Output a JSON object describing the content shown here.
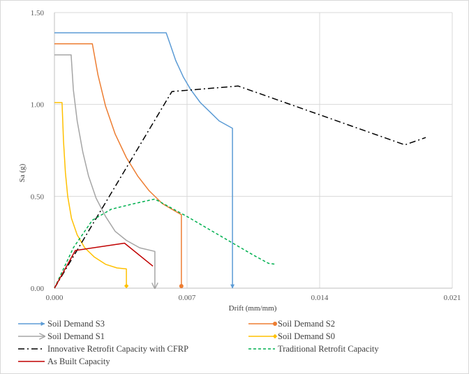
{
  "chart_data": {
    "type": "line",
    "xlabel": "Drift (mm/mm)",
    "ylabel": "Sa (g)",
    "xlim": [
      0,
      0.021
    ],
    "ylim": [
      0,
      1.5
    ],
    "x_ticks": [
      0,
      0.007,
      0.014,
      0.021
    ],
    "x_tick_labels": [
      "0.000",
      "0.007",
      "0.014",
      "0.021"
    ],
    "y_ticks": [
      0,
      0.5,
      1.0,
      1.5
    ],
    "y_tick_labels": [
      "0.00",
      "0.50",
      "1.00",
      "1.50"
    ],
    "grid": "vertical and horizontal at major ticks",
    "legend_position": "bottom",
    "series": [
      {
        "name": "Soil Demand S3",
        "color": "#5b9bd5",
        "dash": "solid",
        "end_marker": "arrow",
        "points": [
          [
            0,
            1.39
          ],
          [
            0.0059,
            1.39
          ],
          [
            0.0061,
            1.33
          ],
          [
            0.0064,
            1.24
          ],
          [
            0.0068,
            1.15
          ],
          [
            0.0072,
            1.08
          ],
          [
            0.0077,
            1.01
          ],
          [
            0.0082,
            0.96
          ],
          [
            0.0087,
            0.91
          ],
          [
            0.0094,
            0.87
          ],
          [
            0.0094,
            0.0
          ]
        ]
      },
      {
        "name": "Soil Demand S2",
        "color": "#ed7d31",
        "dash": "solid",
        "end_marker": "circle",
        "points": [
          [
            0,
            1.33
          ],
          [
            0.002,
            1.33
          ],
          [
            0.0023,
            1.16
          ],
          [
            0.0027,
            0.99
          ],
          [
            0.0032,
            0.84
          ],
          [
            0.0038,
            0.71
          ],
          [
            0.0044,
            0.61
          ],
          [
            0.005,
            0.53
          ],
          [
            0.0057,
            0.46
          ],
          [
            0.0062,
            0.43
          ],
          [
            0.0067,
            0.4
          ],
          [
            0.0067,
            0.0
          ]
        ]
      },
      {
        "name": "Soil Demand S1",
        "color": "#a5a5a5",
        "dash": "solid",
        "end_marker": "open-arrow",
        "points": [
          [
            0,
            1.27
          ],
          [
            0.00088,
            1.27
          ],
          [
            0.001,
            1.08
          ],
          [
            0.0012,
            0.91
          ],
          [
            0.0015,
            0.74
          ],
          [
            0.0018,
            0.61
          ],
          [
            0.0022,
            0.49
          ],
          [
            0.0027,
            0.39
          ],
          [
            0.0032,
            0.31
          ],
          [
            0.0038,
            0.26
          ],
          [
            0.0045,
            0.22
          ],
          [
            0.0053,
            0.2
          ],
          [
            0.0053,
            0.0
          ]
        ]
      },
      {
        "name": "Soil Demand S0",
        "color": "#ffc000",
        "dash": "solid",
        "end_marker": "diamond",
        "points": [
          [
            0,
            1.01
          ],
          [
            0.0004,
            1.01
          ],
          [
            0.00048,
            0.8
          ],
          [
            0.00058,
            0.63
          ],
          [
            0.0007,
            0.5
          ],
          [
            0.0009,
            0.38
          ],
          [
            0.0012,
            0.29
          ],
          [
            0.0016,
            0.22
          ],
          [
            0.0021,
            0.17
          ],
          [
            0.0027,
            0.13
          ],
          [
            0.0033,
            0.11
          ],
          [
            0.0038,
            0.105
          ],
          [
            0.0038,
            0.0
          ]
        ]
      },
      {
        "name": "Innovative Retrofit Capacity with CFRP",
        "color": "#000000",
        "dash": "dash-dot",
        "end_marker": "none",
        "points": [
          [
            0,
            0
          ],
          [
            0.0062,
            1.07
          ],
          [
            0.0097,
            1.1
          ],
          [
            0.0185,
            0.78
          ],
          [
            0.0196,
            0.82
          ]
        ]
      },
      {
        "name": "Traditional Retrofit Capacity",
        "color": "#00b050",
        "dash": "dashed",
        "end_marker": "none",
        "points": [
          [
            0,
            0
          ],
          [
            0.001,
            0.22
          ],
          [
            0.002,
            0.37
          ],
          [
            0.003,
            0.43
          ],
          [
            0.0042,
            0.46
          ],
          [
            0.0053,
            0.485
          ],
          [
            0.007,
            0.39
          ],
          [
            0.009,
            0.27
          ],
          [
            0.0105,
            0.18
          ],
          [
            0.0113,
            0.135
          ],
          [
            0.0117,
            0.13
          ]
        ]
      },
      {
        "name": "As Built Capacity",
        "color": "#c00000",
        "dash": "solid",
        "end_marker": "none",
        "points": [
          [
            0,
            0
          ],
          [
            0.0011,
            0.205
          ],
          [
            0.0037,
            0.245
          ],
          [
            0.0052,
            0.12
          ]
        ]
      }
    ]
  }
}
